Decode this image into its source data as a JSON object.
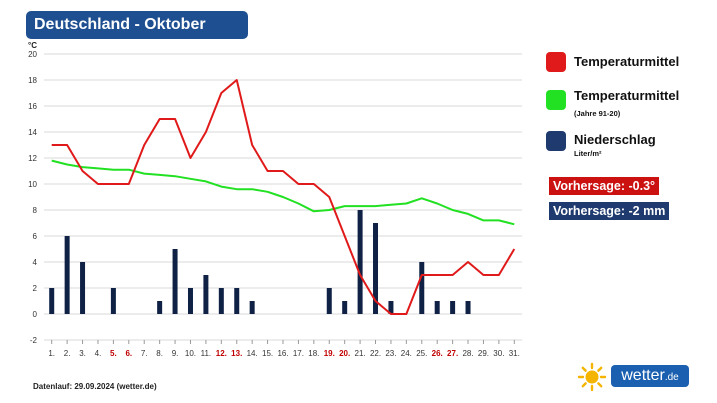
{
  "title": "Deutschland - Oktober",
  "footer": "Datenlauf: 29.09.2024 (wetter.de)",
  "logo": {
    "name": "wetter",
    "tld": ".de",
    "icon": "sun-icon"
  },
  "legend": [
    {
      "label": "Temperaturmittel",
      "sub": "",
      "color": "#e01a1a"
    },
    {
      "label": "Temperaturmittel",
      "sub": "(Jahre 91-20)",
      "color": "#22e022"
    },
    {
      "label": "Niederschlag",
      "sub": "Liter/m²",
      "color": "#1e3a6e"
    }
  ],
  "forecasts": [
    {
      "text": "Vorhersage: -0.3°",
      "color": "#cc1111"
    },
    {
      "text": "Vorhersage: -2 mm",
      "color": "#1e3a6e"
    }
  ],
  "chart_data": {
    "type": "bar+line",
    "yunit": "°C",
    "ylim": [
      -2,
      20
    ],
    "yticks": [
      -2,
      0,
      2,
      4,
      6,
      8,
      10,
      12,
      14,
      16,
      18,
      20
    ],
    "grid": true,
    "categories": [
      "1.",
      "2.",
      "3.",
      "4.",
      "5.",
      "6.",
      "7.",
      "8.",
      "9.",
      "10.",
      "11.",
      "12.",
      "13.",
      "14.",
      "15.",
      "16.",
      "17.",
      "18.",
      "19.",
      "20.",
      "21.",
      "22.",
      "23.",
      "24.",
      "25.",
      "26.",
      "27.",
      "28.",
      "29.",
      "30.",
      "31."
    ],
    "highlight_days": [
      "5.",
      "6.",
      "12.",
      "13.",
      "19.",
      "20.",
      "26.",
      "27."
    ],
    "highlight_color": "#c00000",
    "series": [
      {
        "name": "Temperaturmittel",
        "type": "line",
        "color": "#e01a1a",
        "values": [
          13,
          13,
          11,
          10,
          10,
          10,
          13,
          15,
          15,
          12,
          14,
          17,
          18,
          13,
          11,
          11,
          10,
          10,
          9,
          6,
          3,
          1,
          0,
          0,
          3,
          3,
          3,
          4,
          3,
          3,
          5
        ]
      },
      {
        "name": "Temperaturmittel (Jahre 91-20)",
        "type": "line",
        "color": "#22e022",
        "values": [
          11.8,
          11.5,
          11.3,
          11.2,
          11.1,
          11.1,
          10.8,
          10.7,
          10.6,
          10.4,
          10.2,
          9.8,
          9.6,
          9.6,
          9.4,
          9.0,
          8.5,
          7.9,
          8.0,
          8.3,
          8.3,
          8.3,
          8.4,
          8.5,
          8.9,
          8.5,
          8.0,
          7.7,
          7.2,
          7.2,
          6.9
        ]
      },
      {
        "name": "Niederschlag",
        "type": "bar",
        "color": "#0f2145",
        "values": [
          2,
          6,
          4,
          0,
          2,
          0,
          0,
          1,
          5,
          2,
          3,
          2,
          2,
          1,
          0,
          0,
          0,
          0,
          2,
          1,
          8,
          7,
          1,
          0,
          4,
          1,
          1,
          1,
          0,
          0,
          0
        ]
      }
    ]
  }
}
